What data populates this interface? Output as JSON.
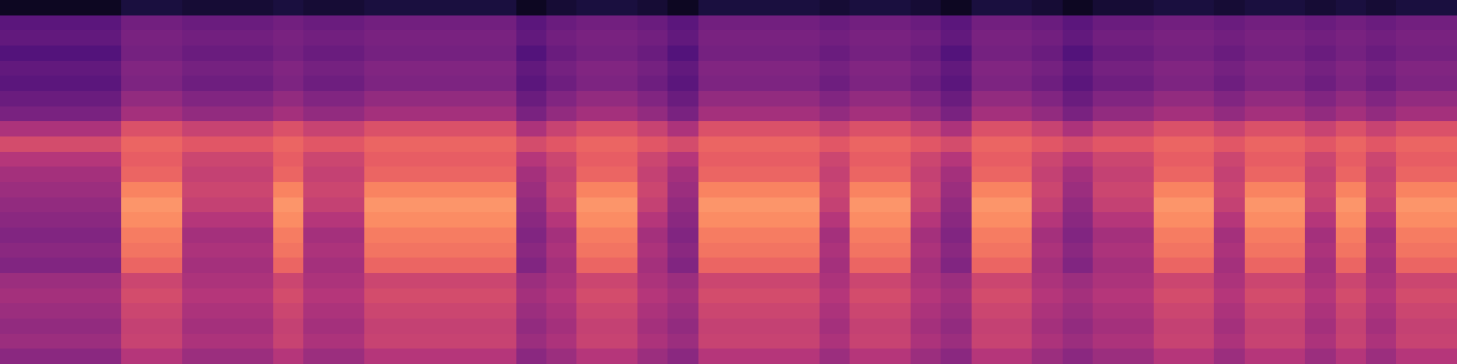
{
  "chart_data": {
    "type": "heatmap",
    "tick_labels": false,
    "zlim": [
      0,
      100
    ],
    "values": [
      [
        6,
        6,
        6,
        6,
        12,
        12,
        10,
        10,
        10,
        12,
        10,
        10,
        12,
        12,
        12,
        12,
        12,
        6,
        10,
        12,
        12,
        10,
        6,
        12,
        12,
        12,
        12,
        10,
        12,
        12,
        10,
        6,
        12,
        12,
        10,
        6,
        10,
        10,
        12,
        12,
        10,
        12,
        12,
        10,
        12,
        10,
        12,
        12
      ],
      [
        28,
        28,
        28,
        28,
        34,
        34,
        32,
        32,
        32,
        34,
        32,
        32,
        34,
        34,
        34,
        34,
        34,
        28,
        32,
        34,
        34,
        32,
        28,
        34,
        34,
        34,
        34,
        32,
        34,
        34,
        32,
        28,
        34,
        34,
        32,
        28,
        32,
        32,
        34,
        34,
        32,
        34,
        34,
        32,
        34,
        32,
        34,
        34
      ],
      [
        30,
        30,
        30,
        30,
        36,
        36,
        34,
        34,
        34,
        36,
        34,
        34,
        36,
        36,
        36,
        36,
        36,
        30,
        34,
        36,
        36,
        34,
        30,
        36,
        36,
        36,
        36,
        34,
        36,
        36,
        34,
        30,
        36,
        36,
        34,
        30,
        34,
        34,
        36,
        36,
        34,
        36,
        36,
        34,
        36,
        34,
        36,
        36
      ],
      [
        26,
        26,
        26,
        26,
        35,
        35,
        32,
        32,
        32,
        35,
        32,
        32,
        35,
        35,
        35,
        35,
        35,
        26,
        32,
        35,
        35,
        32,
        26,
        35,
        35,
        35,
        35,
        32,
        35,
        35,
        32,
        26,
        35,
        35,
        32,
        26,
        32,
        32,
        35,
        35,
        32,
        35,
        35,
        32,
        35,
        32,
        35,
        35
      ],
      [
        30,
        30,
        30,
        30,
        38,
        38,
        35,
        35,
        35,
        38,
        35,
        35,
        38,
        38,
        38,
        38,
        38,
        30,
        35,
        38,
        38,
        35,
        30,
        38,
        38,
        38,
        38,
        35,
        38,
        38,
        35,
        30,
        38,
        38,
        35,
        30,
        35,
        35,
        38,
        38,
        35,
        38,
        38,
        35,
        38,
        35,
        38,
        38
      ],
      [
        28,
        28,
        28,
        28,
        37,
        37,
        33,
        33,
        33,
        37,
        33,
        33,
        37,
        37,
        37,
        37,
        37,
        28,
        33,
        37,
        37,
        33,
        28,
        37,
        37,
        37,
        37,
        33,
        37,
        37,
        33,
        28,
        37,
        37,
        33,
        28,
        33,
        33,
        37,
        37,
        33,
        37,
        37,
        33,
        37,
        33,
        37,
        37
      ],
      [
        32,
        32,
        32,
        32,
        42,
        42,
        38,
        38,
        38,
        42,
        38,
        38,
        42,
        42,
        42,
        42,
        42,
        32,
        38,
        42,
        42,
        38,
        32,
        42,
        42,
        42,
        42,
        38,
        42,
        42,
        38,
        32,
        42,
        42,
        38,
        32,
        38,
        38,
        42,
        42,
        38,
        42,
        42,
        38,
        42,
        38,
        42,
        42
      ],
      [
        36,
        36,
        36,
        36,
        46,
        46,
        42,
        42,
        42,
        46,
        42,
        42,
        46,
        46,
        46,
        46,
        46,
        36,
        42,
        46,
        46,
        42,
        36,
        46,
        46,
        46,
        46,
        42,
        46,
        46,
        42,
        36,
        46,
        46,
        42,
        36,
        42,
        42,
        46,
        46,
        42,
        46,
        46,
        42,
        46,
        42,
        46,
        46
      ],
      [
        48,
        48,
        48,
        48,
        60,
        60,
        55,
        55,
        55,
        60,
        55,
        55,
        60,
        60,
        60,
        60,
        60,
        48,
        55,
        60,
        60,
        55,
        48,
        60,
        60,
        60,
        60,
        55,
        60,
        60,
        55,
        48,
        60,
        60,
        55,
        48,
        55,
        55,
        60,
        60,
        55,
        60,
        60,
        55,
        60,
        55,
        60,
        60
      ],
      [
        58,
        58,
        58,
        58,
        66,
        66,
        62,
        62,
        62,
        66,
        62,
        62,
        66,
        66,
        66,
        66,
        66,
        58,
        62,
        66,
        66,
        62,
        58,
        66,
        66,
        66,
        66,
        62,
        66,
        66,
        62,
        58,
        66,
        66,
        62,
        58,
        62,
        62,
        66,
        66,
        62,
        66,
        66,
        62,
        66,
        62,
        66,
        66
      ],
      [
        50,
        50,
        50,
        50,
        64,
        64,
        56,
        56,
        56,
        64,
        56,
        56,
        64,
        64,
        64,
        64,
        64,
        50,
        56,
        64,
        64,
        56,
        50,
        64,
        64,
        64,
        64,
        56,
        64,
        64,
        56,
        50,
        64,
        64,
        56,
        50,
        56,
        56,
        64,
        64,
        56,
        64,
        64,
        56,
        64,
        56,
        64,
        64
      ],
      [
        46,
        46,
        46,
        46,
        66,
        66,
        54,
        54,
        54,
        66,
        54,
        54,
        66,
        66,
        66,
        66,
        66,
        46,
        54,
        66,
        66,
        54,
        46,
        66,
        66,
        66,
        66,
        54,
        66,
        66,
        54,
        46,
        66,
        66,
        54,
        46,
        54,
        54,
        66,
        66,
        54,
        66,
        66,
        54,
        66,
        54,
        66,
        66
      ],
      [
        44,
        44,
        44,
        44,
        74,
        74,
        56,
        56,
        56,
        74,
        56,
        56,
        74,
        74,
        74,
        74,
        74,
        44,
        56,
        74,
        74,
        56,
        44,
        74,
        74,
        74,
        74,
        56,
        74,
        74,
        56,
        44,
        74,
        74,
        56,
        44,
        56,
        56,
        74,
        74,
        56,
        74,
        74,
        56,
        74,
        56,
        74,
        74
      ],
      [
        42,
        42,
        42,
        42,
        78,
        78,
        54,
        54,
        54,
        78,
        54,
        54,
        78,
        78,
        78,
        78,
        78,
        42,
        54,
        78,
        78,
        54,
        42,
        78,
        78,
        78,
        78,
        54,
        78,
        78,
        54,
        42,
        78,
        78,
        54,
        42,
        54,
        54,
        78,
        78,
        54,
        78,
        78,
        54,
        78,
        54,
        78,
        78
      ],
      [
        40,
        40,
        40,
        40,
        76,
        76,
        50,
        50,
        50,
        76,
        50,
        50,
        76,
        76,
        76,
        76,
        76,
        40,
        50,
        76,
        76,
        50,
        40,
        76,
        76,
        76,
        76,
        50,
        76,
        76,
        50,
        40,
        76,
        76,
        50,
        40,
        50,
        50,
        76,
        76,
        50,
        76,
        76,
        50,
        76,
        50,
        76,
        76
      ],
      [
        38,
        38,
        38,
        38,
        72,
        72,
        46,
        46,
        46,
        72,
        46,
        46,
        72,
        72,
        72,
        72,
        72,
        38,
        46,
        72,
        72,
        46,
        38,
        72,
        72,
        72,
        72,
        46,
        72,
        72,
        46,
        38,
        72,
        72,
        46,
        38,
        46,
        46,
        72,
        72,
        46,
        72,
        72,
        46,
        72,
        46,
        72,
        72
      ],
      [
        40,
        40,
        40,
        40,
        70,
        70,
        48,
        48,
        48,
        70,
        48,
        48,
        70,
        70,
        70,
        70,
        70,
        40,
        48,
        70,
        70,
        48,
        40,
        70,
        70,
        70,
        70,
        48,
        70,
        70,
        48,
        40,
        70,
        70,
        48,
        40,
        48,
        48,
        70,
        70,
        48,
        70,
        70,
        48,
        70,
        48,
        70,
        70
      ],
      [
        38,
        38,
        38,
        38,
        66,
        66,
        46,
        46,
        46,
        66,
        46,
        46,
        66,
        66,
        66,
        66,
        66,
        38,
        46,
        66,
        66,
        46,
        38,
        66,
        66,
        66,
        66,
        46,
        66,
        66,
        46,
        38,
        66,
        66,
        46,
        38,
        46,
        46,
        66,
        66,
        46,
        66,
        66,
        46,
        66,
        46,
        66,
        66
      ],
      [
        44,
        44,
        44,
        44,
        56,
        56,
        48,
        48,
        48,
        56,
        48,
        48,
        56,
        56,
        56,
        56,
        56,
        44,
        48,
        56,
        56,
        48,
        44,
        56,
        56,
        56,
        56,
        48,
        56,
        56,
        48,
        44,
        56,
        56,
        48,
        44,
        48,
        48,
        56,
        56,
        48,
        56,
        56,
        48,
        56,
        48,
        56,
        56
      ],
      [
        46,
        46,
        46,
        46,
        58,
        58,
        50,
        50,
        50,
        58,
        50,
        50,
        58,
        58,
        58,
        58,
        58,
        46,
        50,
        58,
        58,
        50,
        46,
        58,
        58,
        58,
        58,
        50,
        58,
        58,
        50,
        46,
        58,
        58,
        50,
        46,
        50,
        50,
        58,
        58,
        50,
        58,
        58,
        50,
        58,
        50,
        58,
        58
      ],
      [
        44,
        44,
        44,
        44,
        56,
        56,
        48,
        48,
        48,
        56,
        48,
        48,
        56,
        56,
        56,
        56,
        56,
        44,
        48,
        56,
        56,
        48,
        44,
        56,
        56,
        56,
        56,
        48,
        56,
        56,
        48,
        44,
        56,
        56,
        48,
        44,
        48,
        48,
        56,
        56,
        48,
        56,
        56,
        48,
        56,
        48,
        56,
        56
      ],
      [
        42,
        42,
        42,
        42,
        54,
        54,
        46,
        46,
        46,
        54,
        46,
        46,
        54,
        54,
        54,
        54,
        54,
        42,
        46,
        54,
        54,
        46,
        42,
        54,
        54,
        54,
        54,
        46,
        54,
        54,
        46,
        42,
        54,
        54,
        46,
        42,
        46,
        46,
        54,
        54,
        46,
        54,
        54,
        46,
        54,
        46,
        54,
        54
      ],
      [
        44,
        44,
        44,
        44,
        55,
        55,
        48,
        48,
        48,
        55,
        48,
        48,
        55,
        55,
        55,
        55,
        55,
        44,
        48,
        55,
        55,
        48,
        44,
        55,
        55,
        55,
        55,
        48,
        55,
        55,
        48,
        44,
        55,
        55,
        48,
        44,
        48,
        48,
        55,
        55,
        48,
        55,
        55,
        48,
        55,
        48,
        55,
        55
      ],
      [
        40,
        40,
        40,
        40,
        50,
        50,
        44,
        44,
        44,
        50,
        44,
        44,
        50,
        50,
        50,
        50,
        50,
        40,
        44,
        50,
        50,
        44,
        40,
        50,
        50,
        50,
        50,
        44,
        50,
        50,
        44,
        40,
        50,
        50,
        44,
        40,
        44,
        44,
        50,
        50,
        44,
        50,
        50,
        44,
        50,
        44,
        50,
        50
      ]
    ]
  }
}
